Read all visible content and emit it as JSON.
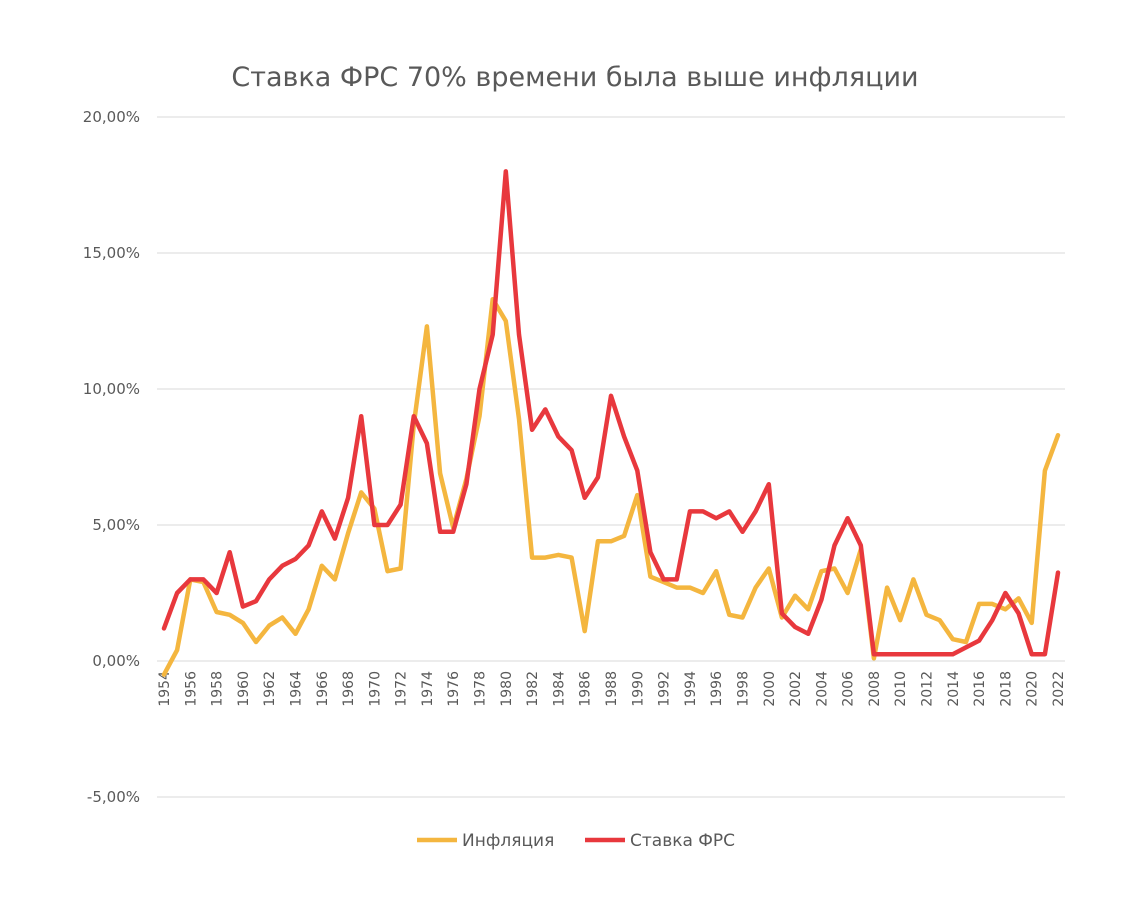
{
  "chart_data": {
    "type": "line",
    "title": "Ставка ФРС 70% времени была выше инфляции",
    "ylim": [
      -5,
      20
    ],
    "yticks": [
      -5,
      0,
      5,
      10,
      15,
      20
    ],
    "ytick_labels": [
      "-5,00%",
      "0,00%",
      "5,00%",
      "10,00%",
      "15,00%",
      "20,00%"
    ],
    "xtick_labels": [
      "1954",
      "1956",
      "1958",
      "1960",
      "1962",
      "1964",
      "1966",
      "1968",
      "1970",
      "1972",
      "1974",
      "1976",
      "1978",
      "1980",
      "1982",
      "1984",
      "1986",
      "1988",
      "1990",
      "1992",
      "1994",
      "1996",
      "1998",
      "2000",
      "2002",
      "2004",
      "2006",
      "2008",
      "2010",
      "2012",
      "2014",
      "2016",
      "2018",
      "2020",
      "2022"
    ],
    "x": [
      1954,
      1955,
      1956,
      1957,
      1958,
      1959,
      1960,
      1961,
      1962,
      1963,
      1964,
      1965,
      1966,
      1967,
      1968,
      1969,
      1970,
      1971,
      1972,
      1973,
      1974,
      1975,
      1976,
      1977,
      1978,
      1979,
      1980,
      1981,
      1982,
      1983,
      1984,
      1985,
      1986,
      1987,
      1988,
      1989,
      1990,
      1991,
      1992,
      1993,
      1994,
      1995,
      1996,
      1997,
      1998,
      1999,
      2000,
      2001,
      2002,
      2003,
      2004,
      2005,
      2006,
      2007,
      2008,
      2009,
      2010,
      2011,
      2012,
      2013,
      2014,
      2015,
      2016,
      2017,
      2018,
      2019,
      2020,
      2021,
      2022
    ],
    "grid": true,
    "legend_position": "bottom",
    "series": [
      {
        "name": "Инфляция",
        "color": "#f4b63f",
        "values": [
          -0.5,
          0.4,
          3.0,
          2.9,
          1.8,
          1.7,
          1.4,
          0.7,
          1.3,
          1.6,
          1.0,
          1.9,
          3.5,
          3.0,
          4.7,
          6.2,
          5.6,
          3.3,
          3.4,
          8.7,
          12.3,
          6.9,
          4.9,
          6.7,
          9.0,
          13.3,
          12.5,
          8.9,
          3.8,
          3.8,
          3.9,
          3.8,
          1.1,
          4.4,
          4.4,
          4.6,
          6.1,
          3.1,
          2.9,
          2.7,
          2.7,
          2.5,
          3.3,
          1.7,
          1.6,
          2.7,
          3.4,
          1.6,
          2.4,
          1.9,
          3.3,
          3.4,
          2.5,
          4.1,
          0.1,
          2.7,
          1.5,
          3.0,
          1.7,
          1.5,
          0.8,
          0.7,
          2.1,
          2.1,
          1.9,
          2.3,
          1.4,
          7.0,
          8.3
        ]
      },
      {
        "name": "Ставка ФРС",
        "color": "#e8383d",
        "values": [
          1.2,
          2.5,
          3.0,
          3.0,
          2.5,
          4.0,
          2.0,
          2.2,
          3.0,
          3.5,
          3.75,
          4.25,
          5.5,
          4.5,
          6.0,
          9.0,
          5.0,
          5.0,
          5.75,
          9.0,
          8.0,
          4.75,
          4.75,
          6.5,
          10.0,
          12.0,
          18.0,
          12.0,
          8.5,
          9.25,
          8.25,
          7.75,
          6.0,
          6.75,
          9.75,
          8.25,
          7.0,
          4.0,
          3.0,
          3.0,
          5.5,
          5.5,
          5.25,
          5.5,
          4.75,
          5.5,
          6.5,
          1.75,
          1.25,
          1.0,
          2.25,
          4.25,
          5.25,
          4.25,
          0.25,
          0.25,
          0.25,
          0.25,
          0.25,
          0.25,
          0.25,
          0.5,
          0.75,
          1.5,
          2.5,
          1.75,
          0.25,
          0.25,
          3.25
        ]
      }
    ]
  }
}
